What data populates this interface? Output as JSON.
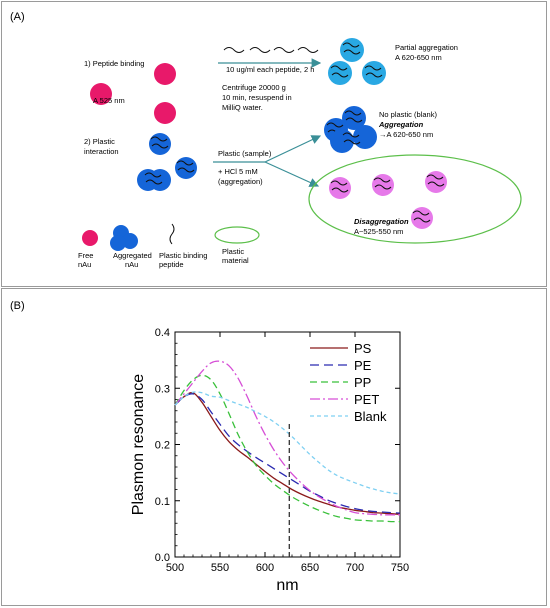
{
  "panel_a": {
    "label": "(A)",
    "step1": "1) Peptide binding",
    "a525": "A 525 nm",
    "step2_line1": "2) Plastic",
    "step2_line2": "interaction",
    "cond1": "10 ug/ml each peptide, 2 h",
    "cent_line1": "Centrifuge 20000 g",
    "cent_line2": "10 min, resuspend in",
    "cent_line3": "MilliQ water.",
    "partial_line1": "Partial aggregation",
    "partial_line2": "A 620-650 nm",
    "noplastic": "No plastic (blank)",
    "aggregation": "Aggregation",
    "agg_abs": "→A 620-650 nm",
    "plastic_sample": "Plastic (sample)",
    "hcl_line1": "+ HCl 5 mM",
    "hcl_line2": "(aggregation)",
    "disaggregation": "Disaggregation",
    "disagg_abs": "A~525-550 nm",
    "legend": {
      "free_line1": "Free",
      "free_line2": "nAu",
      "agg_line1": "Aggregated",
      "agg_line2": "nAu",
      "pep_line1": "Plastic binding",
      "pep_line2": "peptide",
      "plastic_line1": "Plastic",
      "plastic_line2": "material"
    },
    "colors": {
      "free_nau": "#e8196a",
      "aggregated_nau": "#1565d8",
      "partial_nau": "#29a8e3",
      "disaggregated_nau": "#e679e9",
      "plastic": "#5cbf4a",
      "arrow": "#3a8f97"
    }
  },
  "panel_b": {
    "label": "(B)"
  },
  "chart_data": {
    "type": "line",
    "ylabel": "Plasmon resonance",
    "xlabel": "nm",
    "xlim": [
      500,
      750
    ],
    "ylim": [
      0.0,
      0.4
    ],
    "x_ticks": [
      "500",
      "550",
      "600",
      "650",
      "700",
      "750"
    ],
    "y_ticks": [
      "0.0",
      "0.1",
      "0.2",
      "0.3",
      "0.4"
    ],
    "vline_x": 627,
    "legend_position": "top-right",
    "x": [
      500,
      510,
      520,
      530,
      540,
      550,
      560,
      570,
      580,
      590,
      600,
      610,
      620,
      630,
      640,
      650,
      660,
      670,
      680,
      690,
      700,
      710,
      720,
      730,
      740,
      750
    ],
    "series": [
      {
        "name": "PS",
        "color": "#8b1a1a",
        "dash": "solid",
        "values": [
          0.27,
          0.285,
          0.292,
          0.275,
          0.25,
          0.225,
          0.205,
          0.19,
          0.178,
          0.165,
          0.152,
          0.14,
          0.13,
          0.12,
          0.112,
          0.105,
          0.099,
          0.094,
          0.089,
          0.086,
          0.083,
          0.081,
          0.079,
          0.078,
          0.077,
          0.076
        ]
      },
      {
        "name": "PE",
        "color": "#2a2ab0",
        "dash": "long",
        "values": [
          0.27,
          0.285,
          0.29,
          0.28,
          0.258,
          0.236,
          0.215,
          0.2,
          0.188,
          0.177,
          0.167,
          0.157,
          0.147,
          0.137,
          0.127,
          0.117,
          0.109,
          0.101,
          0.095,
          0.09,
          0.086,
          0.083,
          0.081,
          0.08,
          0.079,
          0.078
        ]
      },
      {
        "name": "PP",
        "color": "#39c03a",
        "dash": "medium",
        "values": [
          0.27,
          0.296,
          0.315,
          0.323,
          0.315,
          0.29,
          0.255,
          0.218,
          0.188,
          0.163,
          0.145,
          0.13,
          0.118,
          0.107,
          0.098,
          0.09,
          0.083,
          0.077,
          0.072,
          0.069,
          0.066,
          0.065,
          0.064,
          0.064,
          0.063,
          0.063
        ]
      },
      {
        "name": "PET",
        "color": "#d64fd6",
        "dash": "dashdot",
        "values": [
          0.27,
          0.29,
          0.31,
          0.33,
          0.345,
          0.348,
          0.34,
          0.318,
          0.286,
          0.25,
          0.218,
          0.19,
          0.167,
          0.148,
          0.132,
          0.118,
          0.107,
          0.098,
          0.09,
          0.084,
          0.079,
          0.077,
          0.076,
          0.075,
          0.075,
          0.075
        ]
      },
      {
        "name": "Blank",
        "color": "#7fd0f2",
        "dash": "short",
        "values": [
          0.27,
          0.285,
          0.293,
          0.292,
          0.286,
          0.284,
          0.278,
          0.272,
          0.266,
          0.258,
          0.25,
          0.24,
          0.228,
          0.214,
          0.198,
          0.182,
          0.168,
          0.155,
          0.145,
          0.138,
          0.132,
          0.126,
          0.121,
          0.117,
          0.114,
          0.112
        ]
      }
    ]
  }
}
